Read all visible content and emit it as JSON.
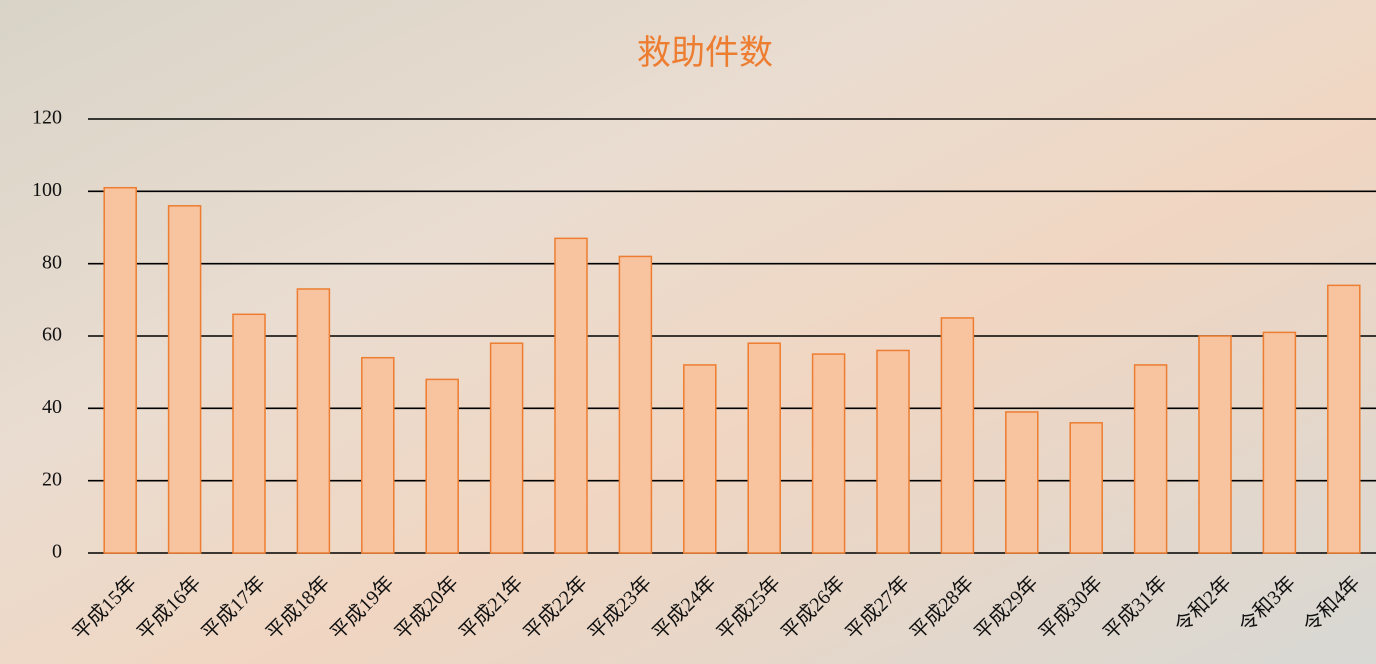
{
  "chart_data": {
    "type": "bar",
    "title": "救助件数",
    "categories": [
      "平成15年",
      "平成16年",
      "平成17年",
      "平成18年",
      "平成19年",
      "平成20年",
      "平成21年",
      "平成22年",
      "平成23年",
      "平成24年",
      "平成25年",
      "平成26年",
      "平成27年",
      "平成28年",
      "平成29年",
      "平成30年",
      "平成31年",
      "令和2年",
      "令和3年",
      "令和4年"
    ],
    "values": [
      101,
      96,
      66,
      73,
      54,
      48,
      58,
      87,
      82,
      52,
      58,
      55,
      56,
      65,
      39,
      36,
      52,
      60,
      61,
      74
    ],
    "color": "#f8c4a0",
    "edge_color": "#ed7d31",
    "ylim": [
      0,
      120
    ],
    "yticks": [
      0,
      20,
      40,
      60,
      80,
      100,
      120
    ],
    "grid": true
  }
}
